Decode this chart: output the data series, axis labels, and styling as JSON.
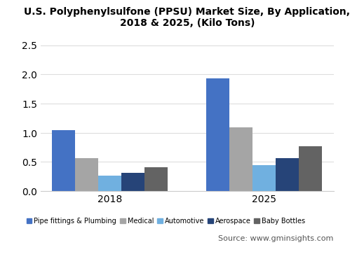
{
  "title": "U.S. Polyphenylsulfone (PPSU) Market Size, By Application,\n2018 & 2025, (Kilo Tons)",
  "categories": [
    "2018",
    "2025"
  ],
  "series": {
    "Pipe fittings & Plumbing": [
      1.04,
      1.93
    ],
    "Medical": [
      0.56,
      1.09
    ],
    "Automotive": [
      0.26,
      0.45
    ],
    "Aerospace": [
      0.31,
      0.56
    ],
    "Baby Bottles": [
      0.41,
      0.77
    ]
  },
  "colors": {
    "Pipe fittings & Plumbing": "#4472C4",
    "Medical": "#A5A5A5",
    "Automotive": "#70B0E0",
    "Aerospace": "#264478",
    "Baby Bottles": "#636363"
  },
  "ylim": [
    0,
    2.7
  ],
  "yticks": [
    0.0,
    0.5,
    1.0,
    1.5,
    2.0,
    2.5
  ],
  "source_text": "Source: www.gminsights.com",
  "background_color": "#ffffff",
  "plot_background": "#ffffff",
  "source_bg": "#e8e8e8",
  "bar_width": 0.6,
  "group_positions": [
    1.5,
    5.5
  ],
  "n_bars": 5
}
